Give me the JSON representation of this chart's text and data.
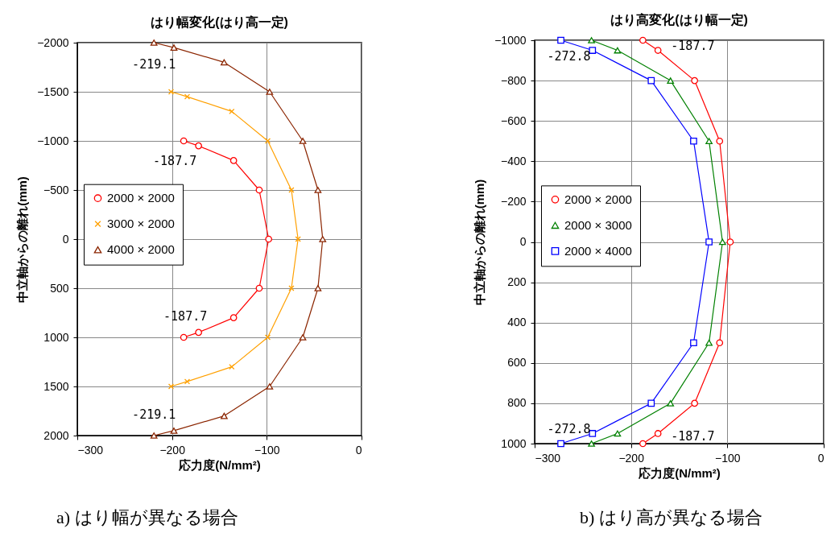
{
  "chart_data": [
    {
      "type": "line",
      "title": "はり幅変化(はり高一定)",
      "xlabel": "応力度(N/mm²)",
      "ylabel": "中立軸からの離れ(mm)",
      "xlim": [
        -300,
        0
      ],
      "xticks": [
        -300,
        -200,
        -100,
        0
      ],
      "ylim": [
        2000,
        -2000
      ],
      "yticks": [
        -2000,
        -1500,
        -1000,
        -500,
        0,
        500,
        1000,
        1500,
        2000
      ],
      "grid": true,
      "legend": "left",
      "series": [
        {
          "name": "2000 × 2000",
          "color": "#ff0000",
          "marker": "circle",
          "x": [
            -187.7,
            -172,
            -135,
            -108,
            -98,
            -108,
            -135,
            -172,
            -187.7
          ],
          "values": [
            -1000,
            -950,
            -800,
            -500,
            0,
            500,
            800,
            950,
            1000
          ]
        },
        {
          "name": "3000 × 2000",
          "color": "#ffa000",
          "marker": "cross",
          "x": [
            -201,
            -184,
            -137,
            -99,
            -74,
            -67,
            -74,
            -99,
            -137,
            -184,
            -201
          ],
          "values": [
            -1500,
            -1450,
            -1300,
            -1000,
            -500,
            0,
            500,
            1000,
            1300,
            1450,
            1500
          ]
        },
        {
          "name": "4000 × 2000",
          "color": "#8b2500",
          "marker": "triangle",
          "x": [
            -219.1,
            -198,
            -145,
            -97,
            -62,
            -46,
            -41,
            -46,
            -62,
            -97,
            -145,
            -198,
            -219.1
          ],
          "values": [
            -2000,
            -1950,
            -1800,
            -1500,
            -1000,
            -500,
            0,
            500,
            1000,
            1500,
            1800,
            1950,
            2000
          ]
        }
      ],
      "annotations": [
        {
          "text": "-219.1",
          "x": -219.1,
          "y": -2000
        },
        {
          "text": "-187.7",
          "x": -187.7,
          "y": -1000
        },
        {
          "text": "-187.7",
          "x": -187.7,
          "y": 1000
        },
        {
          "text": "-219.1",
          "x": -219.1,
          "y": 2000
        },
        "a)  はり幅が異なる場合"
      ]
    },
    {
      "type": "line",
      "title": "はり高変化(はり幅一定)",
      "xlabel": "応力度(N/mm²)",
      "ylabel": "中立軸からの離れ(mm)",
      "xlim": [
        -300,
        0
      ],
      "xticks": [
        -300,
        -200,
        -100,
        0
      ],
      "ylim": [
        1000,
        -1000
      ],
      "yticks": [
        -1000,
        -800,
        -600,
        -400,
        -200,
        0,
        200,
        400,
        600,
        800,
        1000
      ],
      "grid": true,
      "legend": "left",
      "series": [
        {
          "name": "2000 × 2000",
          "color": "#ff0000",
          "marker": "circle",
          "x": [
            -187.7,
            -172,
            -134,
            -108,
            -97,
            -108,
            -134,
            -172,
            -187.7
          ],
          "values": [
            -1000,
            -950,
            -800,
            -500,
            0,
            500,
            800,
            950,
            1000
          ]
        },
        {
          "name": "2000 × 3000",
          "color": "#008000",
          "marker": "triangle",
          "x": [
            -241,
            -214,
            -159,
            -119,
            -105,
            -119,
            -159,
            -214,
            -241
          ],
          "values": [
            -1000,
            -950,
            -800,
            -500,
            0,
            500,
            800,
            950,
            1000
          ]
        },
        {
          "name": "2000 × 4000",
          "color": "#0000ff",
          "marker": "square",
          "x": [
            -272.8,
            -240,
            -179,
            -135,
            -119,
            -135,
            -179,
            -240,
            -272.8
          ],
          "values": [
            -1000,
            -950,
            -800,
            -500,
            0,
            500,
            800,
            950,
            1000
          ]
        }
      ],
      "annotations": [
        {
          "text": "-272.8",
          "x": -272.8,
          "y": -1000
        },
        {
          "text": "-187.7",
          "x": -187.7,
          "y": -1000
        },
        {
          "text": "-272.8",
          "x": -272.8,
          "y": 1000
        },
        {
          "text": "-187.7",
          "x": -187.7,
          "y": 1000
        },
        "b)  はり高が異なる場合"
      ]
    }
  ]
}
